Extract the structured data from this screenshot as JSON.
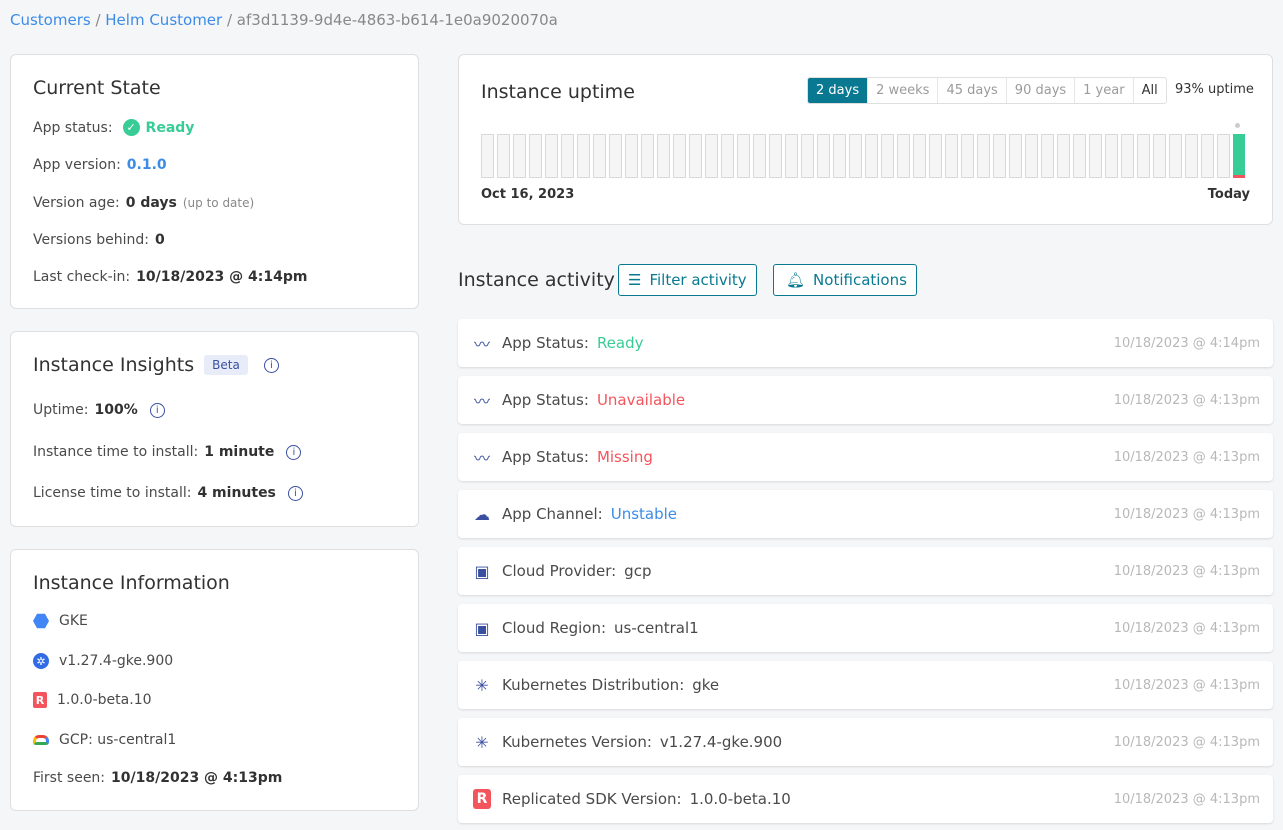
{
  "breadcrumb": {
    "items": [
      "Customers",
      "Helm Customer"
    ],
    "current": "af3d1139-9d4e-4863-b614-1e0a9020070a"
  },
  "current_state": {
    "title": "Current State",
    "app_status_label": "App status:",
    "app_status": "Ready",
    "app_version_label": "App version:",
    "app_version": "0.1.0",
    "version_age_label": "Version age:",
    "version_age": "0 days",
    "version_age_note": "(up to date)",
    "versions_behind_label": "Versions behind:",
    "versions_behind": "0",
    "last_checkin_label": "Last check-in:",
    "last_checkin": "10/18/2023 @ 4:14pm"
  },
  "insights": {
    "title": "Instance Insights",
    "badge": "Beta",
    "uptime_label": "Uptime:",
    "uptime": "100%",
    "install_label": "Instance time to install:",
    "install": "1 minute",
    "license_label": "License time to install:",
    "license": "4 minutes"
  },
  "info": {
    "title": "Instance Information",
    "distribution": "GKE",
    "k8s_version": "v1.27.4-gke.900",
    "sdk_version": "1.0.0-beta.10",
    "cloud": "GCP: us-central1",
    "first_seen_label": "First seen:",
    "first_seen": "10/18/2023 @ 4:13pm"
  },
  "uptime": {
    "title": "Instance uptime",
    "ranges": [
      "2 days",
      "2 weeks",
      "45 days",
      "90 days",
      "1 year",
      "All"
    ],
    "selected": "2 days",
    "summary": "93% uptime",
    "start_label": "Oct 16, 2023",
    "end_label": "Today",
    "last_bar_up_fraction": 0.93,
    "colors": {
      "up": "#38cc97",
      "down": "#f4545c",
      "accent": "#097992"
    }
  },
  "activity": {
    "title": "Instance activity",
    "filter_label": "Filter activity",
    "notifications_label": "Notifications",
    "items": [
      {
        "icon": "pulse-icon",
        "label": "App Status:",
        "value": "Ready",
        "time": "10/18/2023 @ 4:14pm"
      },
      {
        "icon": "pulse-icon",
        "label": "App Status:",
        "value": "Unavailable",
        "time": "10/18/2023 @ 4:13pm"
      },
      {
        "icon": "pulse-icon",
        "label": "App Status:",
        "value": "Missing",
        "time": "10/18/2023 @ 4:13pm"
      },
      {
        "icon": "cloud-download-icon",
        "label": "App Channel:",
        "value": "Unstable",
        "time": "10/18/2023 @ 4:13pm"
      },
      {
        "icon": "cloud-box-icon",
        "label": "Cloud Provider:",
        "value": "gcp",
        "time": "10/18/2023 @ 4:13pm"
      },
      {
        "icon": "cloud-box-icon",
        "label": "Cloud Region:",
        "value": "us-central1",
        "time": "10/18/2023 @ 4:13pm"
      },
      {
        "icon": "network-icon",
        "label": "Kubernetes Distribution:",
        "value": "gke",
        "time": "10/18/2023 @ 4:13pm"
      },
      {
        "icon": "network-icon",
        "label": "Kubernetes Version:",
        "value": "v1.27.4-gke.900",
        "time": "10/18/2023 @ 4:13pm"
      },
      {
        "icon": "replicated-icon",
        "label": "Replicated SDK Version:",
        "value": "1.0.0-beta.10",
        "time": "10/18/2023 @ 4:13pm"
      }
    ]
  }
}
